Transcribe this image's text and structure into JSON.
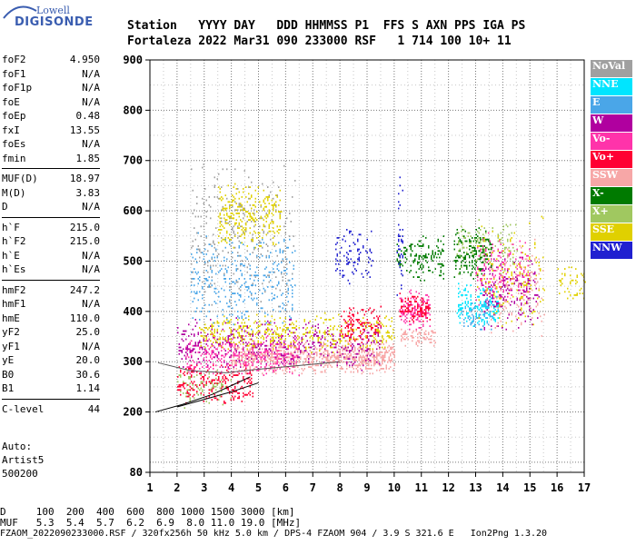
{
  "logo": {
    "line1": "Lowell",
    "line2": "DIGISONDE"
  },
  "header": {
    "line1": "Station   YYYY DAY   DDD HHMMSS P1  FFS S AXN PPS IGA PS",
    "line2": "Fortaleza 2022 Mar31 090 233000 RSF   1 714 100 10+ 11"
  },
  "params": {
    "group1": [
      {
        "label": "foF2",
        "value": "4.950"
      },
      {
        "label": "foF1",
        "value": "N/A"
      },
      {
        "label": "foF1p",
        "value": "N/A"
      },
      {
        "label": "foE",
        "value": "N/A"
      },
      {
        "label": "foEp",
        "value": "0.48"
      },
      {
        "label": "fxI",
        "value": "13.55"
      },
      {
        "label": "foEs",
        "value": "N/A"
      },
      {
        "label": "fmin",
        "value": "1.85"
      }
    ],
    "group2": [
      {
        "label": "MUF(D)",
        "value": "18.97"
      },
      {
        "label": "M(D)",
        "value": "3.83"
      },
      {
        "label": "D",
        "value": "N/A"
      }
    ],
    "group3": [
      {
        "label": "h`F",
        "value": "215.0"
      },
      {
        "label": "h`F2",
        "value": "215.0"
      },
      {
        "label": "h`E",
        "value": "N/A"
      },
      {
        "label": "h`Es",
        "value": "N/A"
      }
    ],
    "group4": [
      {
        "label": "hmF2",
        "value": "247.2"
      },
      {
        "label": "hmF1",
        "value": "N/A"
      },
      {
        "label": "hmE",
        "value": "110.0"
      },
      {
        "label": "yF2",
        "value": "25.0"
      },
      {
        "label": "yF1",
        "value": "N/A"
      },
      {
        "label": "yE",
        "value": "20.0"
      },
      {
        "label": "B0",
        "value": "30.6"
      },
      {
        "label": "B1",
        "value": "1.14"
      }
    ],
    "group5": [
      {
        "label": "C-level",
        "value": "44"
      }
    ]
  },
  "auto": {
    "line1": "Auto:",
    "line2": "Artist5",
    "line3": "500200"
  },
  "legend": [
    {
      "label": "NoVal",
      "color": "#a0a0a0"
    },
    {
      "label": "NNE",
      "color": "#00e5ff"
    },
    {
      "label": "E",
      "color": "#4aa6e8"
    },
    {
      "label": "W",
      "color": "#b0009f"
    },
    {
      "label": "Vo-",
      "color": "#ff33aa"
    },
    {
      "label": "Vo+",
      "color": "#ff0033"
    },
    {
      "label": "SSW",
      "color": "#f7a7a7"
    },
    {
      "label": "X-",
      "color": "#007a00"
    },
    {
      "label": "X+",
      "color": "#a0c860"
    },
    {
      "label": "SSE",
      "color": "#e0d000"
    },
    {
      "label": "NNW",
      "color": "#2020d0"
    }
  ],
  "chart_data": {
    "type": "scatter",
    "xlim": [
      1,
      17
    ],
    "ylim": [
      80,
      900
    ],
    "x_ticks": [
      "1",
      "2",
      "3",
      "4",
      "5",
      "6",
      "7",
      "8",
      "9",
      "10",
      "11",
      "12",
      "13",
      "14",
      "15",
      "16",
      "17"
    ],
    "y_ticks": [
      "80",
      "200",
      "300",
      "400",
      "500",
      "600",
      "700",
      "800",
      "900"
    ],
    "grid": true,
    "clusters": [
      {
        "dir": "SSW",
        "x": [
          4.0,
          10.0
        ],
        "y": [
          275,
          345
        ],
        "n": 900
      },
      {
        "dir": "Vo+",
        "x": [
          2.0,
          4.8
        ],
        "y": [
          215,
          300
        ],
        "n": 250
      },
      {
        "dir": "Vo-",
        "x": [
          2.3,
          6.5
        ],
        "y": [
          270,
          360
        ],
        "n": 350
      },
      {
        "dir": "W",
        "x": [
          2.0,
          9.5
        ],
        "y": [
          280,
          390
        ],
        "n": 450
      },
      {
        "dir": "SSE",
        "x": [
          2.8,
          10.0
        ],
        "y": [
          320,
          400
        ],
        "n": 450
      },
      {
        "dir": "X+",
        "x": [
          2.0,
          4.0
        ],
        "y": [
          205,
          290
        ],
        "n": 80
      },
      {
        "dir": "E",
        "x": [
          2.5,
          6.3
        ],
        "y": [
          360,
          560
        ],
        "n": 350
      },
      {
        "dir": "SSE",
        "x": [
          3.5,
          5.8
        ],
        "y": [
          520,
          660
        ],
        "n": 300
      },
      {
        "dir": "NoVal",
        "x": [
          2.5,
          6.3
        ],
        "y": [
          380,
          720
        ],
        "n": 250
      },
      {
        "dir": "NNW",
        "x": [
          7.8,
          9.2
        ],
        "y": [
          450,
          570
        ],
        "n": 100
      },
      {
        "dir": "Vo+",
        "x": [
          8.0,
          9.5
        ],
        "y": [
          330,
          420
        ],
        "n": 120
      },
      {
        "dir": "Vo-",
        "x": [
          10.2,
          11.3
        ],
        "y": [
          360,
          450
        ],
        "n": 150
      },
      {
        "dir": "Vo+",
        "x": [
          10.2,
          11.3
        ],
        "y": [
          380,
          440
        ],
        "n": 100
      },
      {
        "dir": "SSW",
        "x": [
          10.2,
          11.5
        ],
        "y": [
          330,
          370
        ],
        "n": 80
      },
      {
        "dir": "X-",
        "x": [
          10.1,
          11.8
        ],
        "y": [
          460,
          560
        ],
        "n": 150
      },
      {
        "dir": "X-",
        "x": [
          12.2,
          13.6
        ],
        "y": [
          460,
          570
        ],
        "n": 200
      },
      {
        "dir": "X+",
        "x": [
          12.3,
          14.5
        ],
        "y": [
          470,
          590
        ],
        "n": 120
      },
      {
        "dir": "NNE",
        "x": [
          12.3,
          13.8
        ],
        "y": [
          370,
          460
        ],
        "n": 200
      },
      {
        "dir": "E",
        "x": [
          12.5,
          13.6
        ],
        "y": [
          360,
          420
        ],
        "n": 60
      },
      {
        "dir": "Vo-",
        "x": [
          13.0,
          15.0
        ],
        "y": [
          400,
          560
        ],
        "n": 180
      },
      {
        "dir": "W",
        "x": [
          13.2,
          15.3
        ],
        "y": [
          350,
          530
        ],
        "n": 180
      },
      {
        "dir": "SSE",
        "x": [
          13.0,
          15.5
        ],
        "y": [
          360,
          590
        ],
        "n": 150
      },
      {
        "dir": "SSW",
        "x": [
          13.5,
          15.5
        ],
        "y": [
          340,
          560
        ],
        "n": 120
      },
      {
        "dir": "SSE",
        "x": [
          16.0,
          17.0
        ],
        "y": [
          420,
          500
        ],
        "n": 50
      },
      {
        "dir": "NNW",
        "x": [
          10.1,
          10.3
        ],
        "y": [
          400,
          710
        ],
        "n": 40
      }
    ],
    "traces": [
      {
        "x": [
          1.2,
          2.2,
          3.3,
          4.1,
          4.7
        ],
        "y": [
          200,
          215,
          235,
          255,
          270
        ]
      },
      {
        "x": [
          2.0,
          3.0,
          4.0,
          5.0
        ],
        "y": [
          210,
          225,
          240,
          258
        ]
      },
      {
        "x": [
          1.3,
          2.5,
          3.8,
          5.0,
          8.0
        ],
        "y": [
          298,
          282,
          278,
          285,
          300
        ]
      }
    ]
  },
  "footer": {
    "line1": "D     100  200  400  600  800 1000 1500 3000 [km]",
    "line2": "MUF   5.3  5.4  5.7  6.2  6.9  8.0 11.0 19.0 [MHz]",
    "line3": "FZAOM_2022090233000.RSF / 320fx256h 50 kHz 5.0 km / DPS-4 FZAOM 904 / 3.9 S 321.6 E   Ion2Png 1.3.20"
  }
}
